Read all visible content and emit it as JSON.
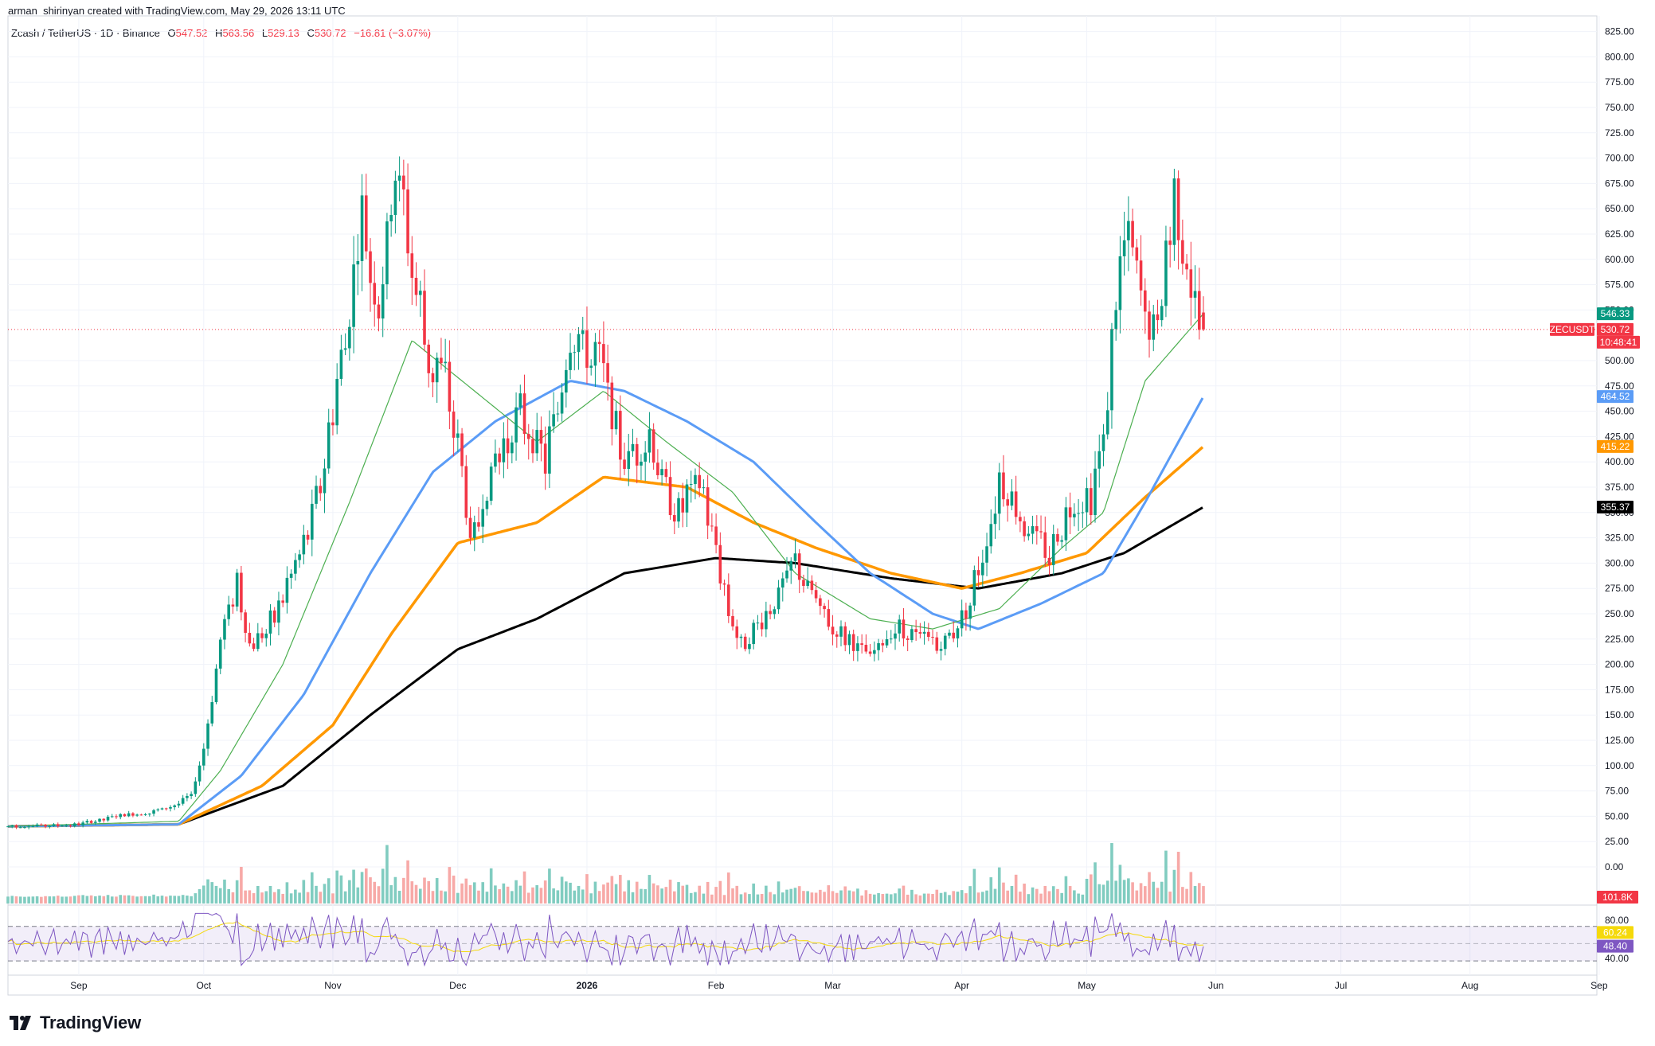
{
  "credit": "arman_shirinyan created with TradingView.com, May 29, 2026 13:11 UTC",
  "legend": {
    "symbol": "Zcash / TetherUS · 1D · Binance",
    "ohlc": [
      {
        "label": "O",
        "value": "547.52"
      },
      {
        "label": "H",
        "value": "563.56"
      },
      {
        "label": "L",
        "value": "529.13"
      },
      {
        "label": "C",
        "value": "530.72"
      },
      {
        "label": "",
        "value": "−16.81 (−3.07%)"
      }
    ]
  },
  "brand": "TradingView",
  "colors": {
    "up": "#089981",
    "down": "#f23645",
    "up_vol": "#80ccc0",
    "down_vol": "#f7a9a7",
    "ema20": "#4caf50",
    "ema50": "#5b9cf6",
    "ema100": "#ff9800",
    "ema200": "#000000",
    "rsi": "#7e57c2",
    "rsi_ma": "#f5d90a",
    "grid": "#f0f3fa",
    "axis_text": "#131722"
  },
  "chart_data": {
    "type": "candlestick",
    "title": "Zcash / TetherUS · 1D · Binance",
    "y_axis": {
      "ticks": [
        "825.00",
        "800.00",
        "775.00",
        "750.00",
        "725.00",
        "700.00",
        "675.00",
        "650.00",
        "625.00",
        "600.00",
        "575.00",
        "550.00",
        "500.00",
        "475.00",
        "450.00",
        "425.00",
        "400.00",
        "375.00",
        "350.00",
        "325.00",
        "300.00",
        "275.00",
        "250.00",
        "225.00",
        "200.00",
        "175.00",
        "150.00",
        "125.00",
        "100.00",
        "75.00",
        "50.00",
        "25.00",
        "0.00"
      ],
      "range": [
        0,
        825
      ]
    },
    "x_axis": {
      "labels": [
        "Sep",
        "Oct",
        "Nov",
        "Dec",
        "2026",
        "Feb",
        "Mar",
        "Apr",
        "May",
        "Jun",
        "Jul",
        "Aug",
        "Sep"
      ]
    },
    "price_labels": [
      {
        "text": "546.33",
        "value": 546.33,
        "color": "#089981"
      },
      {
        "text": "ZECUSDT",
        "value": 530.72,
        "color": "#f23645"
      },
      {
        "text": "530.72",
        "value": 530.72,
        "color": "#f23645"
      },
      {
        "text": "10:48:41",
        "value": 530.72,
        "color": "#f23645"
      },
      {
        "text": "464.52",
        "value": 464.52,
        "color": "#5b9cf6"
      },
      {
        "text": "415.22",
        "value": 415.22,
        "color": "#ff9800"
      },
      {
        "text": "355.37",
        "value": 355.37,
        "color": "#000000"
      }
    ],
    "volume_label": "101.8K",
    "rsi": {
      "ticks": [
        "80.00",
        "40.00"
      ],
      "labels": [
        {
          "text": "60.24",
          "color": "#f5d90a"
        },
        {
          "text": "48.40",
          "color": "#7e57c2"
        }
      ],
      "upper": 70,
      "lower": 30
    },
    "price_anchors": [
      {
        "x": "2025-08-15",
        "y": 40
      },
      {
        "x": "2025-09-01",
        "y": 42
      },
      {
        "x": "2025-09-10",
        "y": 50
      },
      {
        "x": "2025-09-20",
        "y": 55
      },
      {
        "x": "2025-09-28",
        "y": 70
      },
      {
        "x": "2025-10-01",
        "y": 120
      },
      {
        "x": "2025-10-06",
        "y": 240
      },
      {
        "x": "2025-10-09",
        "y": 280
      },
      {
        "x": "2025-10-12",
        "y": 215
      },
      {
        "x": "2025-10-18",
        "y": 250
      },
      {
        "x": "2025-10-24",
        "y": 300
      },
      {
        "x": "2025-10-30",
        "y": 400
      },
      {
        "x": "2025-11-04",
        "y": 520
      },
      {
        "x": "2025-11-08",
        "y": 640
      },
      {
        "x": "2025-11-12",
        "y": 550
      },
      {
        "x": "2025-11-16",
        "y": 690
      },
      {
        "x": "2025-11-20",
        "y": 600
      },
      {
        "x": "2025-11-24",
        "y": 500
      },
      {
        "x": "2025-11-28",
        "y": 480
      },
      {
        "x": "2025-12-01",
        "y": 420
      },
      {
        "x": "2025-12-04",
        "y": 320
      },
      {
        "x": "2025-12-10",
        "y": 400
      },
      {
        "x": "2025-12-16",
        "y": 450
      },
      {
        "x": "2025-12-22",
        "y": 400
      },
      {
        "x": "2025-12-28",
        "y": 520
      },
      {
        "x": "2026-01-04",
        "y": 500
      },
      {
        "x": "2026-01-10",
        "y": 400
      },
      {
        "x": "2026-01-16",
        "y": 420
      },
      {
        "x": "2026-01-22",
        "y": 350
      },
      {
        "x": "2026-01-28",
        "y": 380
      },
      {
        "x": "2026-02-03",
        "y": 270
      },
      {
        "x": "2026-02-07",
        "y": 220
      },
      {
        "x": "2026-02-12",
        "y": 240
      },
      {
        "x": "2026-02-20",
        "y": 300
      },
      {
        "x": "2026-02-26",
        "y": 250
      },
      {
        "x": "2026-03-04",
        "y": 225
      },
      {
        "x": "2026-03-10",
        "y": 205
      },
      {
        "x": "2026-03-16",
        "y": 240
      },
      {
        "x": "2026-03-22",
        "y": 225
      },
      {
        "x": "2026-03-28",
        "y": 220
      },
      {
        "x": "2026-04-02",
        "y": 255
      },
      {
        "x": "2026-04-06",
        "y": 310
      },
      {
        "x": "2026-04-10",
        "y": 380
      },
      {
        "x": "2026-04-16",
        "y": 340
      },
      {
        "x": "2026-04-22",
        "y": 310
      },
      {
        "x": "2026-04-28",
        "y": 360
      },
      {
        "x": "2026-05-02",
        "y": 360
      },
      {
        "x": "2026-05-05",
        "y": 420
      },
      {
        "x": "2026-05-08",
        "y": 560
      },
      {
        "x": "2026-05-11",
        "y": 620
      },
      {
        "x": "2026-05-15",
        "y": 540
      },
      {
        "x": "2026-05-18",
        "y": 530
      },
      {
        "x": "2026-05-22",
        "y": 660
      },
      {
        "x": "2026-05-25",
        "y": 600
      },
      {
        "x": "2026-05-27",
        "y": 547
      },
      {
        "x": "2026-05-29",
        "y": 530.72
      }
    ],
    "moving_averages": {
      "ema20": [
        {
          "x": "2025-08-15",
          "y": 40
        },
        {
          "x": "2025-09-25",
          "y": 45
        },
        {
          "x": "2025-10-05",
          "y": 95
        },
        {
          "x": "2025-10-20",
          "y": 200
        },
        {
          "x": "2025-11-05",
          "y": 360
        },
        {
          "x": "2025-11-20",
          "y": 520
        },
        {
          "x": "2025-12-05",
          "y": 470
        },
        {
          "x": "2025-12-20",
          "y": 420
        },
        {
          "x": "2026-01-05",
          "y": 470
        },
        {
          "x": "2026-01-20",
          "y": 420
        },
        {
          "x": "2026-02-05",
          "y": 370
        },
        {
          "x": "2026-02-20",
          "y": 290
        },
        {
          "x": "2026-03-10",
          "y": 245
        },
        {
          "x": "2026-03-25",
          "y": 235
        },
        {
          "x": "2026-04-10",
          "y": 255
        },
        {
          "x": "2026-04-25",
          "y": 315
        },
        {
          "x": "2026-05-05",
          "y": 350
        },
        {
          "x": "2026-05-15",
          "y": 480
        },
        {
          "x": "2026-05-29",
          "y": 546.33
        }
      ],
      "ema50": [
        {
          "x": "2025-08-15",
          "y": 40
        },
        {
          "x": "2025-09-25",
          "y": 42
        },
        {
          "x": "2025-10-10",
          "y": 90
        },
        {
          "x": "2025-10-25",
          "y": 170
        },
        {
          "x": "2025-11-10",
          "y": 290
        },
        {
          "x": "2025-11-25",
          "y": 390
        },
        {
          "x": "2025-12-10",
          "y": 440
        },
        {
          "x": "2025-12-28",
          "y": 480
        },
        {
          "x": "2026-01-10",
          "y": 470
        },
        {
          "x": "2026-01-25",
          "y": 440
        },
        {
          "x": "2026-02-10",
          "y": 400
        },
        {
          "x": "2026-02-25",
          "y": 340
        },
        {
          "x": "2026-03-10",
          "y": 290
        },
        {
          "x": "2026-03-25",
          "y": 250
        },
        {
          "x": "2026-04-05",
          "y": 235
        },
        {
          "x": "2026-04-20",
          "y": 260
        },
        {
          "x": "2026-05-05",
          "y": 290
        },
        {
          "x": "2026-05-15",
          "y": 360
        },
        {
          "x": "2026-05-29",
          "y": 464.52
        }
      ],
      "ema100": [
        {
          "x": "2025-08-15",
          "y": 40
        },
        {
          "x": "2025-09-25",
          "y": 42
        },
        {
          "x": "2025-10-15",
          "y": 80
        },
        {
          "x": "2025-11-01",
          "y": 140
        },
        {
          "x": "2025-11-15",
          "y": 230
        },
        {
          "x": "2025-12-01",
          "y": 320
        },
        {
          "x": "2025-12-20",
          "y": 340
        },
        {
          "x": "2026-01-05",
          "y": 385
        },
        {
          "x": "2026-01-25",
          "y": 375
        },
        {
          "x": "2026-02-10",
          "y": 340
        },
        {
          "x": "2026-02-25",
          "y": 315
        },
        {
          "x": "2026-03-15",
          "y": 290
        },
        {
          "x": "2026-04-01",
          "y": 275
        },
        {
          "x": "2026-04-15",
          "y": 290
        },
        {
          "x": "2026-05-01",
          "y": 310
        },
        {
          "x": "2026-05-15",
          "y": 365
        },
        {
          "x": "2026-05-29",
          "y": 415.22
        }
      ],
      "ema200": [
        {
          "x": "2025-08-15",
          "y": 40
        },
        {
          "x": "2025-09-25",
          "y": 42
        },
        {
          "x": "2025-10-20",
          "y": 80
        },
        {
          "x": "2025-11-10",
          "y": 150
        },
        {
          "x": "2025-12-01",
          "y": 215
        },
        {
          "x": "2025-12-20",
          "y": 245
        },
        {
          "x": "2026-01-10",
          "y": 290
        },
        {
          "x": "2026-02-01",
          "y": 305
        },
        {
          "x": "2026-02-20",
          "y": 300
        },
        {
          "x": "2026-03-15",
          "y": 285
        },
        {
          "x": "2026-04-05",
          "y": 275
        },
        {
          "x": "2026-04-25",
          "y": 290
        },
        {
          "x": "2026-05-10",
          "y": 310
        },
        {
          "x": "2026-05-29",
          "y": 355.37
        }
      ]
    }
  }
}
